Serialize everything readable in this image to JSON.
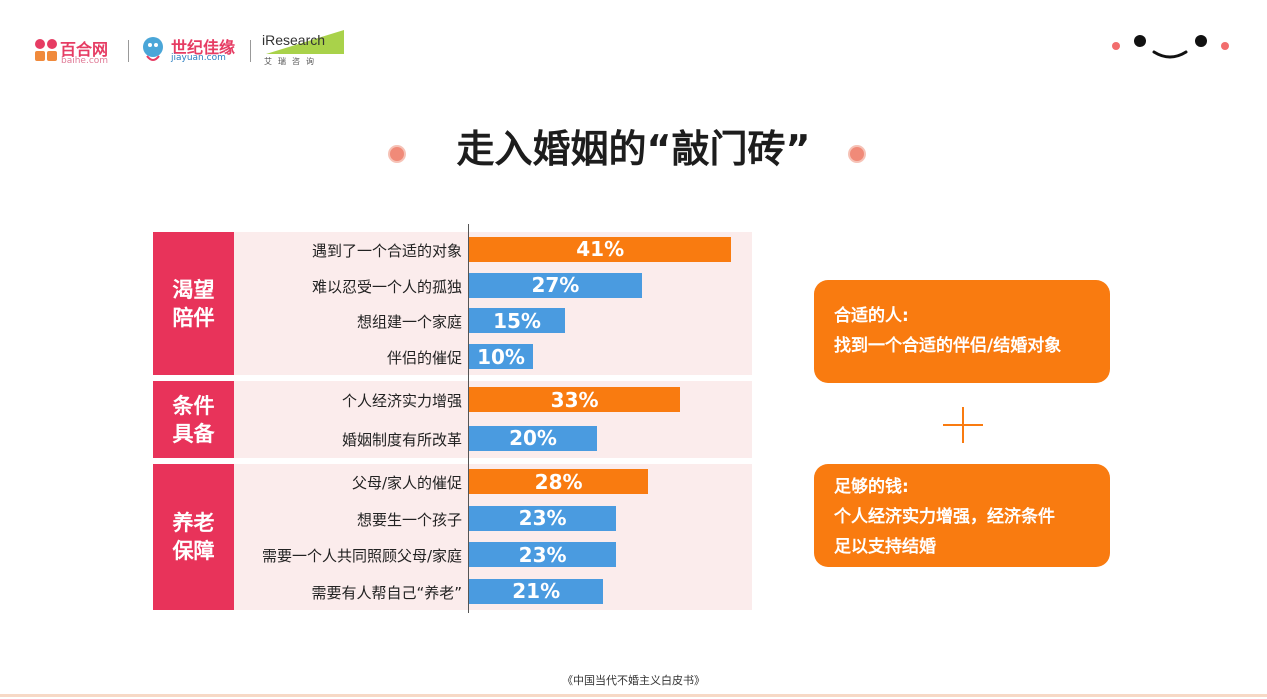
{
  "header": {
    "baihe": {
      "name": "百合网",
      "domain": "baihe.com"
    },
    "jiayuan": {
      "name": "世纪佳缘",
      "domain": "jiayuan.com"
    },
    "iresearch": {
      "name": "iResearch",
      "sub": "艾瑞咨询"
    }
  },
  "title": "走入婚姻的“敲门砖”",
  "colors": {
    "orange": "#f97b10",
    "blue": "#4a9be0",
    "category": "#e8335a",
    "panel": "#fbecec"
  },
  "chart_data": {
    "type": "bar",
    "orientation": "horizontal",
    "unit": "%",
    "groups": [
      {
        "name": "渴望陪伴",
        "lines": [
          "渴望",
          "陪伴"
        ],
        "items": [
          {
            "label": "遇到了一个合适的对象",
            "value": 41,
            "value_label": "41%",
            "highlight": true
          },
          {
            "label": "难以忍受一个人的孤独",
            "value": 27,
            "value_label": "27%",
            "highlight": false
          },
          {
            "label": "想组建一个家庭",
            "value": 15,
            "value_label": "15%",
            "highlight": false
          },
          {
            "label": "伴侣的催促",
            "value": 10,
            "value_label": "10%",
            "highlight": false
          }
        ]
      },
      {
        "name": "条件具备",
        "lines": [
          "条件",
          "具备"
        ],
        "items": [
          {
            "label": "个人经济实力增强",
            "value": 33,
            "value_label": "33%",
            "highlight": true
          },
          {
            "label": "婚姻制度有所改革",
            "value": 20,
            "value_label": "20%",
            "highlight": false
          }
        ]
      },
      {
        "name": "养老保障",
        "lines": [
          "养老",
          "保障"
        ],
        "items": [
          {
            "label": "父母/家人的催促",
            "value": 28,
            "value_label": "28%",
            "highlight": true
          },
          {
            "label": "想要生一个孩子",
            "value": 23,
            "value_label": "23%",
            "highlight": false
          },
          {
            "label": "需要一个人共同照顾父母/家庭",
            "value": 23,
            "value_label": "23%",
            "highlight": false
          },
          {
            "label": "需要有人帮自己“养老”",
            "value": 21,
            "value_label": "21%",
            "highlight": false
          }
        ]
      }
    ]
  },
  "callouts": [
    {
      "heading": "合适的人:",
      "lines": [
        "找到一个合适的伴侣/结婚对象"
      ]
    },
    {
      "heading": "足够的钱:",
      "lines": [
        "个人经济实力增强，经济条件",
        "足以支持结婚"
      ]
    }
  ],
  "footer": "《中国当代不婚主义白皮书》"
}
